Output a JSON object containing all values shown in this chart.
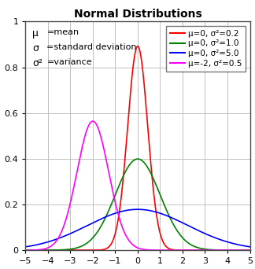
{
  "title": "Normal Distributions",
  "xlim": [
    -5,
    5
  ],
  "ylim": [
    0,
    1
  ],
  "xticks": [
    -5,
    -4,
    -3,
    -2,
    -1,
    0,
    1,
    2,
    3,
    4,
    5
  ],
  "yticks": [
    0,
    0.2,
    0.4,
    0.6,
    0.8,
    1
  ],
  "ytick_labels": [
    "0",
    "0.2",
    "0.4",
    "0.6",
    "0.8",
    "1"
  ],
  "distributions": [
    {
      "mu": 0,
      "var": 0.2,
      "color": "#ff0000",
      "label": "μ=0, σ²=0.2"
    },
    {
      "mu": 0,
      "var": 1.0,
      "color": "#008000",
      "label": "μ=0, σ²=1.0"
    },
    {
      "mu": 0,
      "var": 5.0,
      "color": "#0000ff",
      "label": "μ=0, σ²=5.0"
    },
    {
      "mu": -2,
      "var": 0.5,
      "color": "#ff00ff",
      "label": "μ=-2, σ²=0.5"
    }
  ],
  "annotation": [
    [
      "μ",
      "=mean"
    ],
    [
      "σ",
      "=standard deviation"
    ],
    [
      "σ²",
      "=variance"
    ]
  ],
  "background_color": "#ffffff",
  "axes_edge_color": "#4d4d4d",
  "grid_color": "#c0c0c0",
  "title_fontsize": 10,
  "tick_fontsize": 8,
  "legend_fontsize": 7.5,
  "annotation_fontsize": 8,
  "figsize": [
    3.24,
    3.42
  ],
  "dpi": 100
}
